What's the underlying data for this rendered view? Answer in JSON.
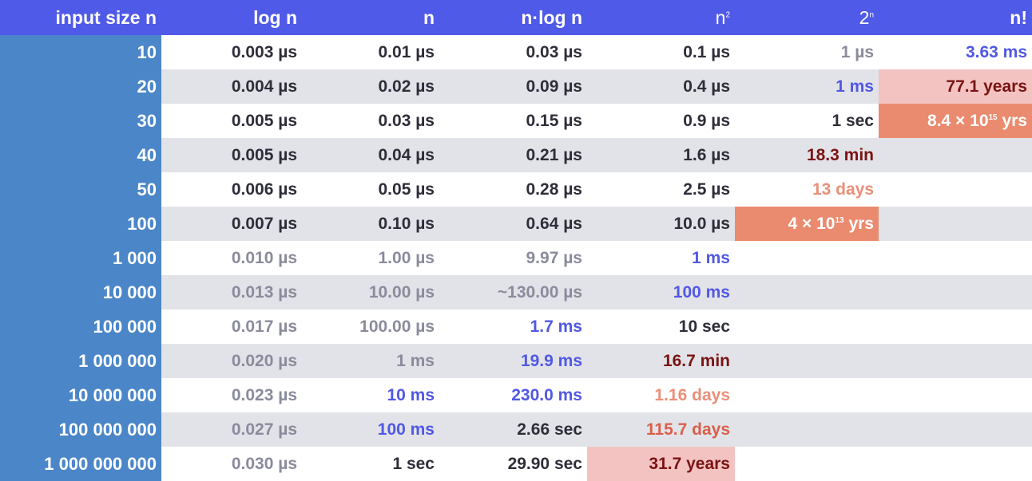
{
  "headers": {
    "input": "input size n",
    "logn": "log n",
    "n": "n",
    "nlogn": "n·log n",
    "n2_base": "n",
    "n2_exp": "2",
    "exp_base": "2",
    "exp_exp": "n",
    "fact": "n!"
  },
  "rows": [
    {
      "n": "10",
      "logn": "0.003 µs",
      "lin": "0.01 µs",
      "nlogn": "0.03 µs",
      "sq": "0.1 µs",
      "exp": "1 µs",
      "fact": "3.63 ms"
    },
    {
      "n": "20",
      "logn": "0.004 µs",
      "lin": "0.02 µs",
      "nlogn": "0.09 µs",
      "sq": "0.4 µs",
      "exp": "1 ms",
      "fact": "77.1 years"
    },
    {
      "n": "30",
      "logn": "0.005 µs",
      "lin": "0.03 µs",
      "nlogn": "0.15 µs",
      "sq": "0.9 µs",
      "exp": "1 sec",
      "fact_pre": "8.4 × 10",
      "fact_exp": "15",
      "fact_post": " yrs"
    },
    {
      "n": "40",
      "logn": "0.005 µs",
      "lin": "0.04 µs",
      "nlogn": "0.21 µs",
      "sq": "1.6 µs",
      "exp": "18.3 min",
      "fact": ""
    },
    {
      "n": "50",
      "logn": "0.006 µs",
      "lin": "0.05 µs",
      "nlogn": "0.28 µs",
      "sq": "2.5 µs",
      "exp": "13 days",
      "fact": ""
    },
    {
      "n": "100",
      "logn": "0.007 µs",
      "lin": "0.10 µs",
      "nlogn": "0.64 µs",
      "sq": "10.0 µs",
      "exp_pre": "4 × 10",
      "exp_exp": "13",
      "exp_post": " yrs",
      "fact": ""
    },
    {
      "n": "1 000",
      "logn": "0.010 µs",
      "lin": "1.00 µs",
      "nlogn": "9.97 µs",
      "sq": "1 ms",
      "exp": "",
      "fact": ""
    },
    {
      "n": "10 000",
      "logn": "0.013 µs",
      "lin": "10.00 µs",
      "nlogn": "~130.00 µs",
      "sq": "100 ms",
      "exp": "",
      "fact": ""
    },
    {
      "n": "100 000",
      "logn": "0.017 µs",
      "lin": "100.00 µs",
      "nlogn": "1.7 ms",
      "sq": "10 sec",
      "exp": "",
      "fact": ""
    },
    {
      "n": "1 000 000",
      "logn": "0.020 µs",
      "lin": "1 ms",
      "nlogn": "19.9 ms",
      "sq": "16.7 min",
      "exp": "",
      "fact": ""
    },
    {
      "n": "10 000 000",
      "logn": "0.023 µs",
      "lin": "10 ms",
      "nlogn": "230.0 ms",
      "sq": "1.16 days",
      "exp": "",
      "fact": ""
    },
    {
      "n": "100 000 000",
      "logn": "0.027 µs",
      "lin": "100 ms",
      "nlogn": "2.66 sec",
      "sq": "115.7 days",
      "exp": "",
      "fact": ""
    },
    {
      "n": "1 000 000 000",
      "logn": "0.030 µs",
      "lin": "1 sec",
      "nlogn": "29.90 sec",
      "sq": "31.7 years",
      "exp": "",
      "fact": ""
    }
  ],
  "colors": {
    "header_bg": "#505ae9",
    "input_col_bg": "#4b86c8",
    "stripe": "#e2e3e8",
    "dark_text": "#2e2e3a",
    "gray_text": "#8a8b9c",
    "blue_text": "#5158e4",
    "maroon_text": "#7a1313",
    "salmon_text": "#ec8f78",
    "red_text": "#d9604b",
    "pink_bg": "#f3c3c1",
    "orange_bg": "#ea8b6f"
  }
}
